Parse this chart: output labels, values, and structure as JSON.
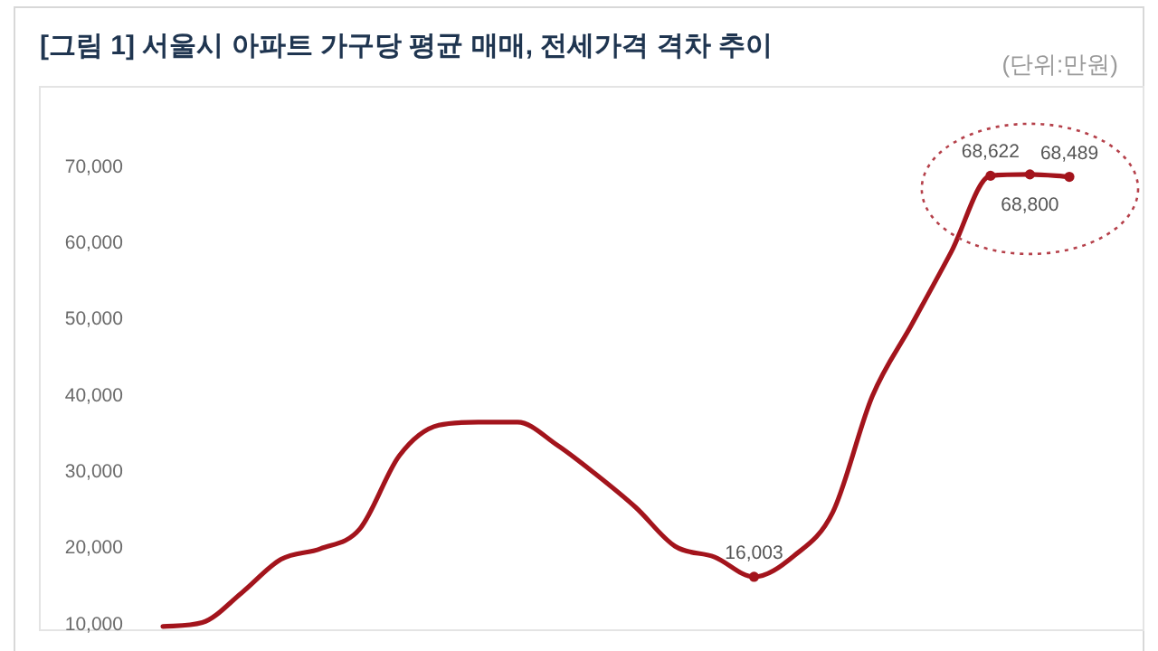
{
  "chart_data": {
    "type": "line",
    "title": "[그림 1] 서울시 아파트 가구당 평균 매매, 전세가격 격차 추이",
    "annotations": [
      "(단위:만원)"
    ],
    "categories": [
      null,
      null,
      null,
      null,
      null,
      null,
      null,
      null,
      null,
      null,
      null,
      null,
      null,
      null,
      null,
      null,
      null,
      null,
      null,
      null,
      null,
      null,
      null,
      null
    ],
    "series": [
      {
        "color": "#a3141c",
        "values": [
          9500,
          10000,
          13900,
          18300,
          19700,
          22300,
          31900,
          35900,
          36300,
          36300,
          33300,
          29400,
          25100,
          20000,
          18600,
          16003,
          18700,
          24500,
          39700,
          49100,
          58600,
          68622,
          68800,
          68489
        ],
        "value_labels": [
          null,
          null,
          null,
          null,
          null,
          null,
          null,
          null,
          null,
          null,
          null,
          null,
          null,
          null,
          null,
          "16,003",
          null,
          null,
          null,
          null,
          null,
          "68,622",
          "68,800",
          "68,489"
        ]
      }
    ],
    "ylim": [
      9000,
      80000
    ],
    "yticks": [
      {
        "value": 10000,
        "label": "10,000"
      },
      {
        "value": 20000,
        "label": "20,000"
      },
      {
        "value": 30000,
        "label": "30,000"
      },
      {
        "value": 40000,
        "label": "40,000"
      },
      {
        "value": 50000,
        "label": "50,000"
      },
      {
        "value": 60000,
        "label": "60,000"
      },
      {
        "value": 70000,
        "label": "70,000"
      }
    ],
    "grid": false
  }
}
